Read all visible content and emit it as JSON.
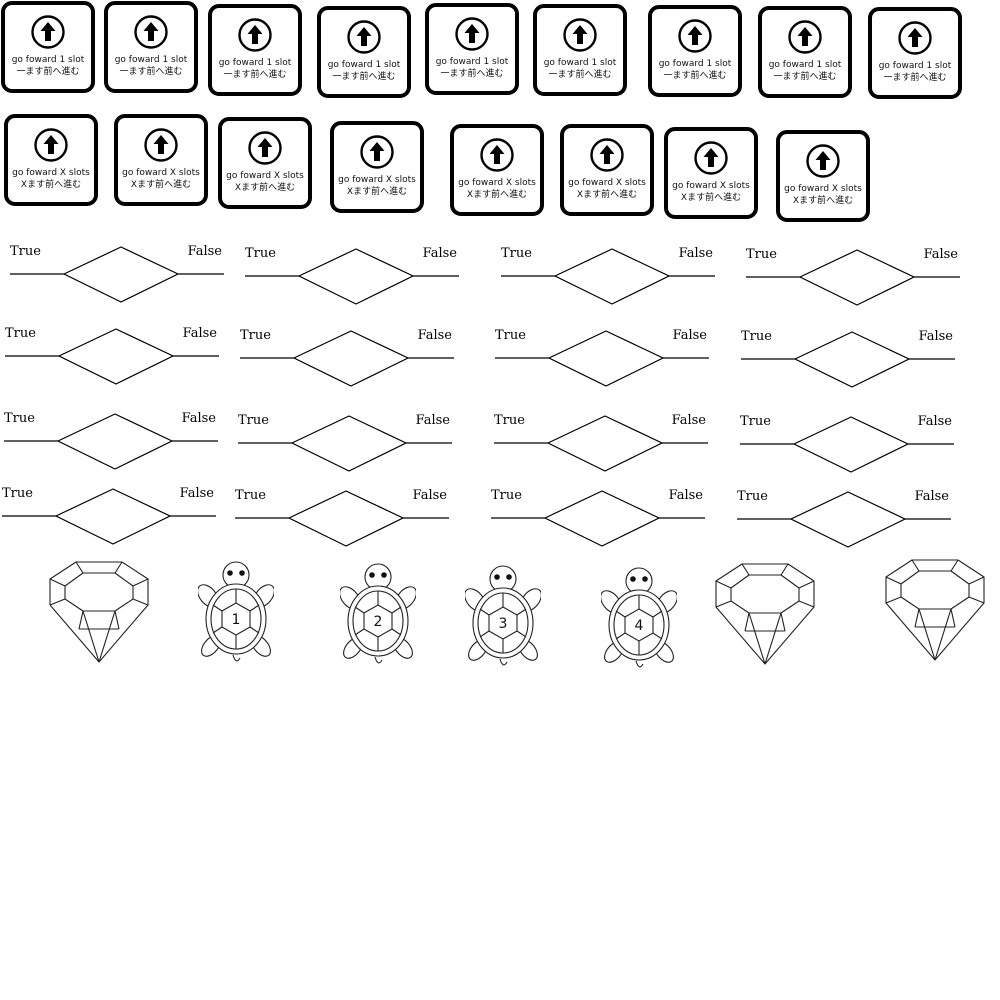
{
  "forward_one_cards": [
    {
      "line1": "go foward 1 slot",
      "line2": "一ます前へ進む",
      "icon": "up-arrow-icon"
    },
    {
      "line1": "go foward 1 slot",
      "line2": "一ます前へ進む",
      "icon": "up-arrow-icon"
    },
    {
      "line1": "go foward 1 slot",
      "line2": "一ます前へ進む",
      "icon": "up-arrow-icon"
    },
    {
      "line1": "go foward 1 slot",
      "line2": "一ます前へ進む",
      "icon": "up-arrow-icon"
    },
    {
      "line1": "go foward 1 slot",
      "line2": "一ます前へ進む",
      "icon": "up-arrow-icon"
    },
    {
      "line1": "go foward 1 slot",
      "line2": "一ます前へ進む",
      "icon": "up-arrow-icon"
    },
    {
      "line1": "go foward 1 slot",
      "line2": "一ます前へ進む",
      "icon": "up-arrow-icon"
    },
    {
      "line1": "go foward 1 slot",
      "line2": "一ます前へ進む",
      "icon": "up-arrow-icon"
    },
    {
      "line1": "go foward 1 slot",
      "line2": "一ます前へ進む",
      "icon": "up-arrow-icon"
    }
  ],
  "forward_x_cards": [
    {
      "line1": "go foward X slots",
      "line2": "Xます前へ進む",
      "icon": "up-arrow-icon"
    },
    {
      "line1": "go foward X slots",
      "line2": "Xます前へ進む",
      "icon": "up-arrow-icon"
    },
    {
      "line1": "go foward X slots",
      "line2": "Xます前へ進む",
      "icon": "up-arrow-icon"
    },
    {
      "line1": "go foward X slots",
      "line2": "Xます前へ進む",
      "icon": "up-arrow-icon"
    },
    {
      "line1": "go foward X slots",
      "line2": "Xます前へ進む",
      "icon": "up-arrow-icon"
    },
    {
      "line1": "go foward X slots",
      "line2": "Xます前へ進む",
      "icon": "up-arrow-icon"
    },
    {
      "line1": "go foward X slots",
      "line2": "Xます前へ進む",
      "icon": "up-arrow-icon"
    }
  ],
  "decision_blocks": [
    {
      "true_label": "True",
      "false_label": "False"
    },
    {
      "true_label": "True",
      "false_label": "False"
    },
    {
      "true_label": "True",
      "false_label": "False"
    },
    {
      "true_label": "True",
      "false_label": "False"
    },
    {
      "true_label": "True",
      "false_label": "False"
    },
    {
      "true_label": "True",
      "false_label": "False"
    },
    {
      "true_label": "True",
      "false_label": "False"
    },
    {
      "true_label": "True",
      "false_label": "False"
    },
    {
      "true_label": "True",
      "false_label": "False"
    },
    {
      "true_label": "True",
      "false_label": "False"
    },
    {
      "true_label": "True",
      "false_label": "False"
    },
    {
      "true_label": "True",
      "false_label": "False"
    },
    {
      "true_label": "True",
      "false_label": "False"
    },
    {
      "true_label": "True",
      "false_label": "False"
    },
    {
      "true_label": "True",
      "false_label": "False"
    },
    {
      "true_label": "True",
      "false_label": "False"
    }
  ],
  "sprites": [
    {
      "type": "gem",
      "icon": "gem-icon"
    },
    {
      "type": "turtle",
      "icon": "turtle-icon",
      "number": "1"
    },
    {
      "type": "turtle",
      "icon": "turtle-icon",
      "number": "2"
    },
    {
      "type": "turtle",
      "icon": "turtle-icon",
      "number": "3"
    },
    {
      "type": "turtle",
      "icon": "turtle-icon",
      "number": "4"
    },
    {
      "type": "gem",
      "icon": "gem-icon"
    },
    {
      "type": "gem",
      "icon": "gem-icon"
    }
  ]
}
